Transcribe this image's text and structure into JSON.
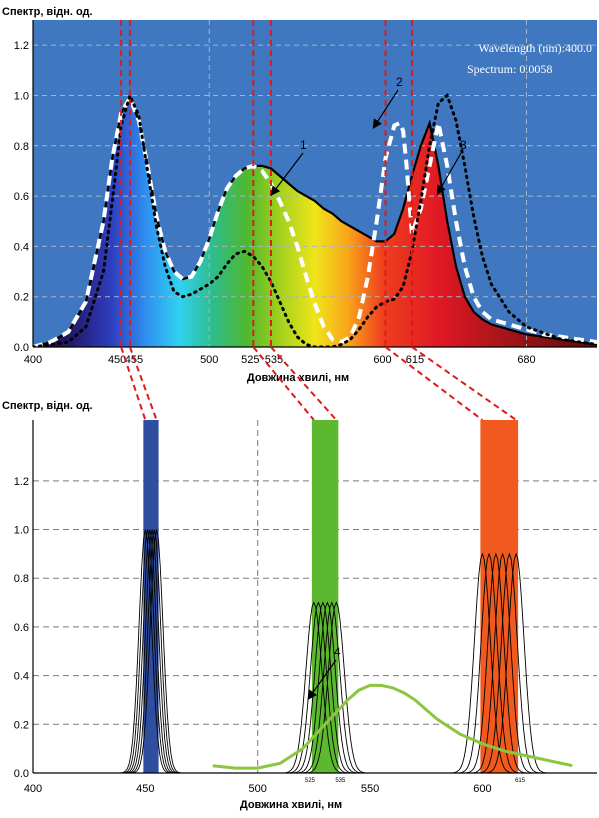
{
  "chart_data": [
    {
      "type": "line",
      "ylabel": "Спектр, відн. од.",
      "xlabel": "Довжина хвилі, нм",
      "xlim": [
        400,
        720
      ],
      "ylim": [
        0,
        1.3
      ],
      "xticks": [
        400,
        450,
        455,
        500,
        525,
        535,
        600,
        615,
        680
      ],
      "yticks": [
        0.0,
        0.2,
        0.4,
        0.6,
        0.8,
        1.0,
        1.2
      ],
      "background": "#3f78c0",
      "grid": true,
      "readout": {
        "wavelength": "Wavelength (nm):400.0",
        "spectrum": "Spectrum: 0.0058"
      },
      "markers": [
        450,
        455,
        525,
        535,
        600,
        615
      ],
      "annotations": [
        "1",
        "2",
        "3"
      ],
      "series": [
        {
          "x": [
            400,
            410,
            420,
            430,
            440,
            445,
            450,
            455,
            460,
            465,
            470,
            475,
            480,
            485,
            490,
            495,
            500,
            505,
            510,
            515,
            520,
            525,
            530,
            535,
            540,
            545,
            550,
            555,
            560,
            565,
            570,
            575,
            580,
            585,
            590,
            595,
            600,
            605,
            610,
            615,
            620,
            625,
            630,
            635,
            640,
            645,
            650,
            655,
            660,
            670,
            680,
            690,
            700,
            710,
            720
          ],
          "y": [
            0.0,
            0.02,
            0.06,
            0.18,
            0.5,
            0.75,
            0.93,
            0.99,
            0.9,
            0.72,
            0.52,
            0.38,
            0.3,
            0.27,
            0.28,
            0.34,
            0.43,
            0.54,
            0.63,
            0.68,
            0.71,
            0.72,
            0.72,
            0.71,
            0.68,
            0.65,
            0.62,
            0.6,
            0.58,
            0.55,
            0.53,
            0.5,
            0.48,
            0.46,
            0.44,
            0.42,
            0.42,
            0.45,
            0.55,
            0.68,
            0.8,
            0.89,
            0.72,
            0.5,
            0.32,
            0.2,
            0.14,
            0.11,
            0.09,
            0.07,
            0.05,
            0.04,
            0.03,
            0.02,
            0.01
          ]
        },
        {
          "x": [
            400,
            410,
            420,
            430,
            440,
            445,
            450,
            455,
            460,
            465,
            470,
            475,
            480,
            485,
            490,
            495,
            500,
            505,
            510,
            515,
            520,
            525,
            530,
            535,
            540,
            545,
            550,
            555,
            560,
            565,
            570,
            575,
            580,
            585,
            590,
            595,
            600,
            605,
            608,
            610,
            612,
            615,
            620,
            625,
            630,
            635,
            640,
            645,
            650,
            655,
            660,
            670,
            680,
            690,
            700,
            710,
            720
          ],
          "y": [
            0.0,
            0.02,
            0.06,
            0.18,
            0.5,
            0.75,
            0.93,
            0.99,
            0.9,
            0.72,
            0.52,
            0.38,
            0.3,
            0.27,
            0.28,
            0.34,
            0.43,
            0.54,
            0.63,
            0.68,
            0.71,
            0.72,
            0.7,
            0.65,
            0.58,
            0.5,
            0.4,
            0.28,
            0.17,
            0.08,
            0.03,
            0.02,
            0.04,
            0.12,
            0.28,
            0.5,
            0.75,
            0.88,
            0.89,
            0.86,
            0.72,
            0.45,
            0.55,
            0.72,
            0.89,
            0.72,
            0.5,
            0.32,
            0.2,
            0.14,
            0.11,
            0.09,
            0.07,
            0.05,
            0.04,
            0.03,
            0.02
          ]
        },
        {
          "x": [
            400,
            420,
            430,
            440,
            445,
            450,
            455,
            460,
            465,
            470,
            475,
            480,
            485,
            490,
            495,
            500,
            505,
            510,
            515,
            520,
            525,
            530,
            535,
            540,
            545,
            550,
            555,
            560,
            565,
            570,
            575,
            580,
            585,
            590,
            595,
            600,
            605,
            610,
            615,
            620,
            625,
            630,
            635,
            640,
            645,
            650,
            655,
            660,
            670,
            680,
            700,
            720
          ],
          "y": [
            0.0,
            0.02,
            0.08,
            0.3,
            0.58,
            0.88,
            1.0,
            0.92,
            0.7,
            0.48,
            0.32,
            0.22,
            0.2,
            0.21,
            0.23,
            0.25,
            0.28,
            0.33,
            0.37,
            0.38,
            0.36,
            0.32,
            0.26,
            0.18,
            0.1,
            0.04,
            0.01,
            0.0,
            0.0,
            0.0,
            0.01,
            0.03,
            0.07,
            0.12,
            0.16,
            0.18,
            0.19,
            0.24,
            0.38,
            0.58,
            0.8,
            0.97,
            1.0,
            0.9,
            0.72,
            0.52,
            0.36,
            0.25,
            0.14,
            0.08,
            0.03,
            0.01
          ]
        }
      ]
    },
    {
      "type": "line",
      "ylabel": "Спектр, відн. од.",
      "xlabel": "Довжина хвилі, нм",
      "xlim": [
        400,
        650
      ],
      "ylim": [
        0,
        1.45
      ],
      "xticks": [
        400,
        450,
        500,
        550,
        600
      ],
      "yticks": [
        0.0,
        0.2,
        0.4,
        0.6,
        0.8,
        1.0,
        1.2
      ],
      "small_ticks": [
        "525",
        "535",
        "615"
      ],
      "bars": [
        {
          "from": 450,
          "to": 455,
          "color": "#2f4ea0"
        },
        {
          "from": 525,
          "to": 535,
          "color": "#5cb82e"
        },
        {
          "from": 600,
          "to": 615,
          "color": "#f05a1e"
        }
      ],
      "led_groups": [
        {
          "from": 450,
          "to": 455,
          "peak": 1.0,
          "width": 4
        },
        {
          "from": 525,
          "to": 535,
          "peak": 0.7,
          "width": 5
        },
        {
          "from": 600,
          "to": 615,
          "peak": 0.9,
          "width": 5
        }
      ],
      "annotations": [
        "4"
      ],
      "series": [
        {
          "x": [
            480,
            490,
            500,
            510,
            520,
            530,
            540,
            545,
            550,
            555,
            560,
            565,
            570,
            575,
            580,
            590,
            600,
            610,
            620,
            630,
            640
          ],
          "y": [
            0.03,
            0.02,
            0.02,
            0.04,
            0.1,
            0.2,
            0.3,
            0.34,
            0.36,
            0.36,
            0.35,
            0.33,
            0.3,
            0.26,
            0.22,
            0.16,
            0.12,
            0.09,
            0.07,
            0.05,
            0.03
          ]
        }
      ]
    }
  ]
}
